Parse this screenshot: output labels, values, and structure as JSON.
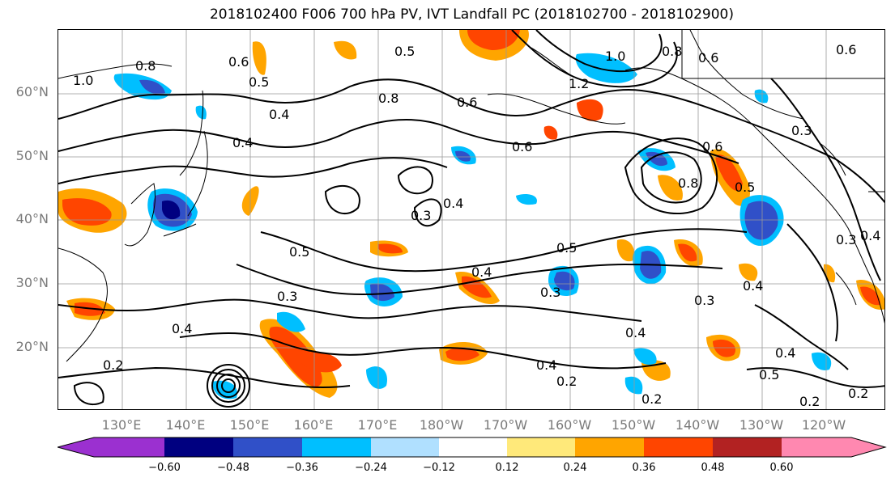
{
  "title": "2018102400 F006 700 hPa PV, IVT Landfall PC (2018102700 - 2018102900)",
  "lat_labels": [
    "60°N",
    "50°N",
    "40°N",
    "30°N",
    "20°N"
  ],
  "lon_labels": [
    "130°E",
    "140°E",
    "150°E",
    "160°E",
    "170°E",
    "180°W",
    "170°W",
    "160°W",
    "150°W",
    "140°W",
    "130°W",
    "120°W"
  ],
  "contour_labels": [
    "1.0",
    "0.8",
    "0.5",
    "0.8",
    "0.6",
    "1.2",
    "1.0",
    "0.8",
    "0.6",
    "0.3",
    "0.4",
    "0.5",
    "0.6",
    "0.4",
    "0.6",
    "0.6",
    "0.8",
    "0.5",
    "0.3",
    "0.4",
    "0.5",
    "0.4",
    "0.3",
    "0.3",
    "0.4",
    "0.5",
    "0.4",
    "0.2",
    "0.4",
    "0.2",
    "0.2",
    "0.4",
    "0.5",
    "0.2",
    "0.2",
    "0.4",
    "0.3",
    "0.6",
    "0.3",
    "0.4"
  ],
  "colorbar": {
    "ticks": [
      "−0.60",
      "−0.48",
      "−0.36",
      "−0.24",
      "−0.12",
      "0.12",
      "0.24",
      "0.36",
      "0.48",
      "0.60"
    ],
    "colors": [
      "#9b30d0",
      "#000080",
      "#3050c8",
      "#00bfff",
      "#b0e0ff",
      "#ffffff",
      "#ffe97a",
      "#ffa500",
      "#ff4500",
      "#b22222",
      "#ff88b0"
    ]
  }
}
